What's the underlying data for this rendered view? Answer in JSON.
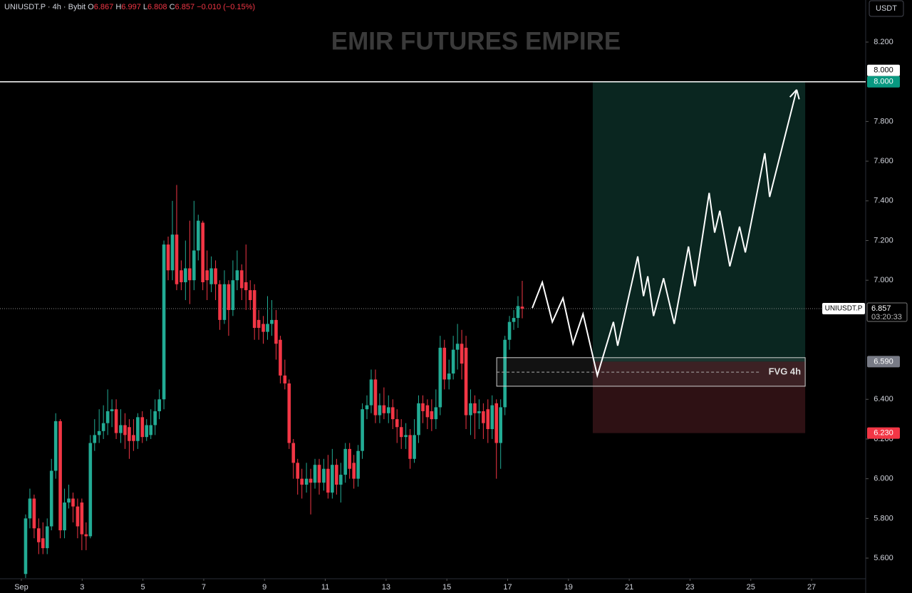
{
  "header": {
    "symbol": "UNIUSDT.P · 4h · Bybit",
    "ohlc": [
      {
        "k": "O",
        "v": "6.867"
      },
      {
        "k": "H",
        "v": "6.997"
      },
      {
        "k": "L",
        "v": "6.808"
      },
      {
        "k": "C",
        "v": "6.857"
      }
    ],
    "change": "−0.010 (−0.15%)"
  },
  "chart_data": {
    "type": "candlestick",
    "title": "EMIR FUTURES EMPIRE",
    "currency": "USDT",
    "symbol_label": "UNIUSDT.P",
    "up_color": "#22ab94",
    "down_color": "#f23645",
    "x": [
      1.14,
      1.28,
      1.42,
      1.57,
      1.71,
      1.85,
      1.99,
      2.13,
      2.28,
      2.42,
      2.56,
      2.7,
      2.85,
      2.99,
      3.13,
      3.27,
      3.41,
      3.56,
      3.7,
      3.84,
      3.98,
      4.12,
      4.27,
      4.41,
      4.55,
      4.69,
      4.83,
      4.98,
      5.12,
      5.26,
      5.4,
      5.54,
      5.69,
      5.83,
      5.97,
      6.11,
      6.26,
      6.4,
      6.54,
      6.68,
      6.82,
      6.97,
      7.11,
      7.25,
      7.39,
      7.53,
      7.68,
      7.82,
      7.96,
      8.1,
      8.25,
      8.39,
      8.53,
      8.67,
      8.81,
      8.96,
      9.1,
      9.24,
      9.38,
      9.52,
      9.67,
      9.81,
      9.95,
      10.09,
      10.23,
      10.38,
      10.52,
      10.66,
      10.8,
      10.95,
      11.09,
      11.23,
      11.37,
      11.51,
      11.66,
      11.8,
      11.94,
      12.08,
      12.22,
      12.37,
      12.51,
      12.65,
      12.79,
      12.93,
      13.08,
      13.22,
      13.36,
      13.5,
      13.65,
      13.79,
      13.93,
      14.07,
      14.21,
      14.36,
      14.5,
      14.64,
      14.78,
      14.92,
      15.07,
      15.21,
      15.35,
      15.49,
      15.63,
      15.78,
      15.92,
      16.06,
      16.2,
      16.35,
      16.49,
      16.63,
      16.77,
      16.91,
      17.06,
      17.2,
      17.34,
      17.48
    ],
    "open": [
      5.52,
      5.8,
      5.9,
      5.75,
      5.7,
      5.65,
      5.76,
      6.04,
      6.29,
      5.74,
      5.88,
      5.9,
      5.86,
      5.88,
      5.72,
      5.71,
      6.18,
      6.22,
      6.24,
      6.28,
      6.34,
      6.35,
      6.23,
      6.27,
      6.26,
      6.22,
      6.19,
      6.31,
      6.21,
      6.22,
      6.27,
      6.34,
      6.4,
      7.18,
      7.05,
      7.23,
      7.05,
      6.99,
      7.06,
      7.0,
      7.15,
      7.29,
      7.05,
      6.98,
      7.06,
      6.98,
      6.8,
      6.98,
      6.85,
      7.0,
      7.05,
      6.99,
      6.95,
      6.95,
      6.8,
      6.78,
      6.74,
      6.78,
      6.8,
      6.7,
      6.52,
      6.48,
      6.18,
      6.08,
      6.0,
      5.97,
      6.0,
      5.98,
      6.07,
      5.98,
      6.05,
      5.93,
      6.07,
      5.97,
      6.02,
      6.15,
      6.08,
      6.0,
      6.14,
      6.35,
      6.37,
      6.5,
      6.32,
      6.37,
      6.33,
      6.36,
      6.3,
      6.26,
      6.21,
      6.22,
      6.1,
      6.22,
      6.38,
      6.37,
      6.34,
      6.3,
      6.36,
      6.66,
      6.5,
      6.53,
      6.65,
      6.68,
      6.66,
      6.32,
      6.38,
      6.33,
      6.34,
      6.35,
      6.25,
      6.38,
      6.18,
      6.36,
      6.7,
      6.79,
      6.81,
      6.867
    ],
    "high": [
      5.82,
      5.95,
      5.92,
      5.8,
      5.78,
      5.8,
      6.1,
      6.33,
      6.3,
      5.95,
      5.97,
      5.93,
      5.9,
      5.9,
      5.78,
      6.22,
      6.3,
      6.35,
      6.37,
      6.45,
      6.4,
      6.4,
      6.35,
      6.33,
      6.3,
      6.3,
      6.33,
      6.34,
      6.3,
      6.35,
      6.4,
      6.45,
      7.2,
      7.22,
      7.4,
      7.48,
      7.1,
      7.2,
      7.3,
      7.4,
      7.33,
      7.3,
      7.15,
      7.12,
      7.1,
      7.0,
      7.05,
      7.0,
      7.1,
      7.15,
      7.08,
      7.18,
      7.0,
      6.98,
      6.85,
      6.82,
      6.92,
      6.9,
      6.85,
      6.72,
      6.6,
      6.5,
      6.2,
      6.1,
      6.05,
      6.08,
      6.05,
      6.1,
      6.1,
      6.1,
      6.12,
      6.15,
      6.1,
      6.08,
      6.18,
      6.18,
      6.12,
      6.17,
      6.38,
      6.42,
      6.55,
      6.55,
      6.43,
      6.46,
      6.42,
      6.4,
      6.35,
      6.3,
      6.28,
      6.25,
      6.3,
      6.42,
      6.42,
      6.4,
      6.4,
      6.45,
      6.72,
      6.7,
      6.6,
      6.72,
      6.78,
      6.75,
      6.72,
      6.45,
      6.42,
      6.4,
      6.38,
      6.4,
      6.42,
      6.4,
      6.4,
      6.72,
      6.82,
      6.85,
      6.92,
      6.997
    ],
    "low": [
      5.5,
      5.75,
      5.7,
      5.62,
      5.62,
      5.62,
      5.74,
      6.0,
      5.7,
      5.7,
      5.85,
      5.78,
      5.7,
      5.64,
      5.64,
      5.7,
      6.14,
      6.18,
      6.2,
      6.22,
      6.26,
      6.2,
      6.18,
      6.15,
      6.1,
      6.14,
      6.15,
      6.18,
      6.19,
      6.2,
      6.22,
      6.3,
      6.35,
      7.0,
      7.0,
      6.95,
      6.95,
      6.9,
      6.88,
      6.95,
      7.1,
      6.95,
      6.9,
      6.94,
      6.9,
      6.75,
      6.78,
      6.72,
      6.82,
      6.95,
      6.9,
      6.85,
      6.85,
      6.7,
      6.7,
      6.68,
      6.7,
      6.72,
      6.6,
      6.48,
      6.45,
      6.15,
      6.0,
      5.92,
      5.9,
      5.93,
      5.82,
      5.95,
      5.92,
      5.94,
      5.9,
      5.9,
      5.92,
      5.88,
      5.98,
      6.0,
      5.95,
      5.96,
      6.1,
      6.3,
      6.33,
      6.28,
      6.28,
      6.3,
      6.28,
      6.25,
      6.18,
      6.15,
      6.15,
      6.05,
      6.08,
      6.18,
      6.28,
      6.25,
      6.24,
      6.25,
      6.32,
      6.45,
      6.45,
      6.5,
      6.55,
      6.5,
      6.25,
      6.22,
      6.2,
      6.25,
      6.2,
      6.18,
      6.2,
      6.0,
      6.05,
      6.32,
      6.65,
      6.75,
      6.76,
      6.808
    ],
    "close": [
      5.8,
      5.9,
      5.75,
      5.68,
      5.65,
      5.76,
      6.04,
      6.29,
      5.74,
      5.88,
      5.9,
      5.86,
      5.76,
      5.72,
      5.71,
      6.18,
      6.22,
      6.24,
      6.28,
      6.34,
      6.35,
      6.23,
      6.27,
      6.22,
      6.19,
      6.19,
      6.31,
      6.21,
      6.27,
      6.27,
      6.34,
      6.4,
      7.18,
      7.05,
      7.23,
      6.98,
      6.99,
      7.06,
      7.0,
      7.15,
      7.3,
      6.99,
      7.0,
      7.06,
      6.98,
      6.8,
      6.98,
      6.85,
      7.0,
      7.05,
      6.96,
      6.95,
      6.9,
      6.76,
      6.76,
      6.74,
      6.78,
      6.8,
      6.68,
      6.52,
      6.48,
      6.18,
      6.08,
      6.0,
      5.97,
      6.0,
      5.98,
      6.07,
      5.98,
      6.05,
      5.93,
      6.07,
      5.97,
      6.02,
      6.15,
      6.05,
      6.0,
      6.14,
      6.35,
      6.37,
      6.5,
      6.32,
      6.37,
      6.33,
      6.36,
      6.3,
      6.26,
      6.21,
      6.22,
      6.1,
      6.22,
      6.38,
      6.34,
      6.31,
      6.3,
      6.36,
      6.66,
      6.5,
      6.53,
      6.65,
      6.68,
      6.58,
      6.32,
      6.38,
      6.33,
      6.34,
      6.28,
      6.25,
      6.37,
      6.18,
      6.36,
      6.7,
      6.79,
      6.81,
      6.87,
      6.857
    ],
    "xlim": [
      0.297,
      28.78
    ],
    "xticks": [
      {
        "value": 1,
        "label": "Sep"
      },
      3,
      5,
      7,
      9,
      11,
      13,
      15,
      17,
      19,
      21,
      23,
      25,
      27
    ],
    "ylim": [
      5.496,
      8.412
    ],
    "yticks": [
      {
        "value": 8.2,
        "label": "8.200"
      },
      {
        "value": 7.8,
        "label": "7.800"
      },
      {
        "value": 7.6,
        "label": "7.600"
      },
      {
        "value": 7.4,
        "label": "7.400"
      },
      {
        "value": 7.2,
        "label": "7.200"
      },
      {
        "value": 7,
        "label": "7.000"
      },
      {
        "value": 6.4,
        "label": "6.400"
      },
      {
        "value": 6.2,
        "label": "6.200"
      },
      {
        "value": 6,
        "label": "6.000"
      },
      {
        "value": 5.8,
        "label": "5.800"
      },
      {
        "value": 5.6,
        "label": "5.600"
      }
    ],
    "last_price": {
      "value": 6.857,
      "label": "6.857",
      "countdown": "03:20:33"
    },
    "hline": {
      "value": 8,
      "label": "8.000"
    },
    "position": {
      "x": [
        19.8,
        26.79
      ],
      "target": {
        "value": 8,
        "label": "8.000"
      },
      "entry": {
        "value": 6.59,
        "label": "6.590"
      },
      "stop": {
        "value": 6.23,
        "label": "6.230"
      }
    },
    "fvg": {
      "label": "FVG 4h",
      "x": [
        16.64,
        26.79
      ],
      "top": 6.61,
      "bottom": 6.466,
      "mid": 6.537
    },
    "projection": {
      "x": [
        17.81,
        18.14,
        18.47,
        18.82,
        19.15,
        19.48,
        19.95,
        20.48,
        20.62,
        21.28,
        21.47,
        21.61,
        21.8,
        22.13,
        22.48,
        22.95,
        23.16,
        23.63,
        23.81,
        23.98,
        24.31,
        24.63,
        24.82,
        25.46,
        25.62,
        26.51
      ],
      "y": [
        6.86,
        6.99,
        6.79,
        6.91,
        6.68,
        6.83,
        6.52,
        6.79,
        6.67,
        7.12,
        6.92,
        7.02,
        6.82,
        7.01,
        6.78,
        7.17,
        6.97,
        7.44,
        7.24,
        7.35,
        7.07,
        7.27,
        7.14,
        7.64,
        7.42,
        7.96
      ]
    }
  }
}
